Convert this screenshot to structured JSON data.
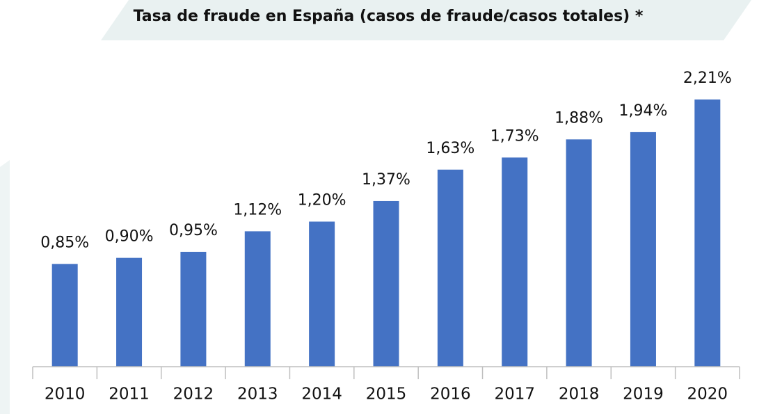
{
  "chart_data": {
    "type": "bar",
    "title": "Tasa de fraude en España (casos de fraude/casos totales) *",
    "categories": [
      "2010",
      "2011",
      "2012",
      "2013",
      "2014",
      "2015",
      "2016",
      "2017",
      "2018",
      "2019",
      "2020"
    ],
    "values": [
      0.85,
      0.9,
      0.95,
      1.12,
      1.2,
      1.37,
      1.63,
      1.73,
      1.88,
      1.94,
      2.21
    ],
    "value_labels": [
      "0,85%",
      "0,90%",
      "0,95%",
      "1,12%",
      "1,20%",
      "1,37%",
      "1,63%",
      "1,73%",
      "1,88%",
      "1,94%",
      "2,21%"
    ],
    "color": "#4472c4"
  }
}
